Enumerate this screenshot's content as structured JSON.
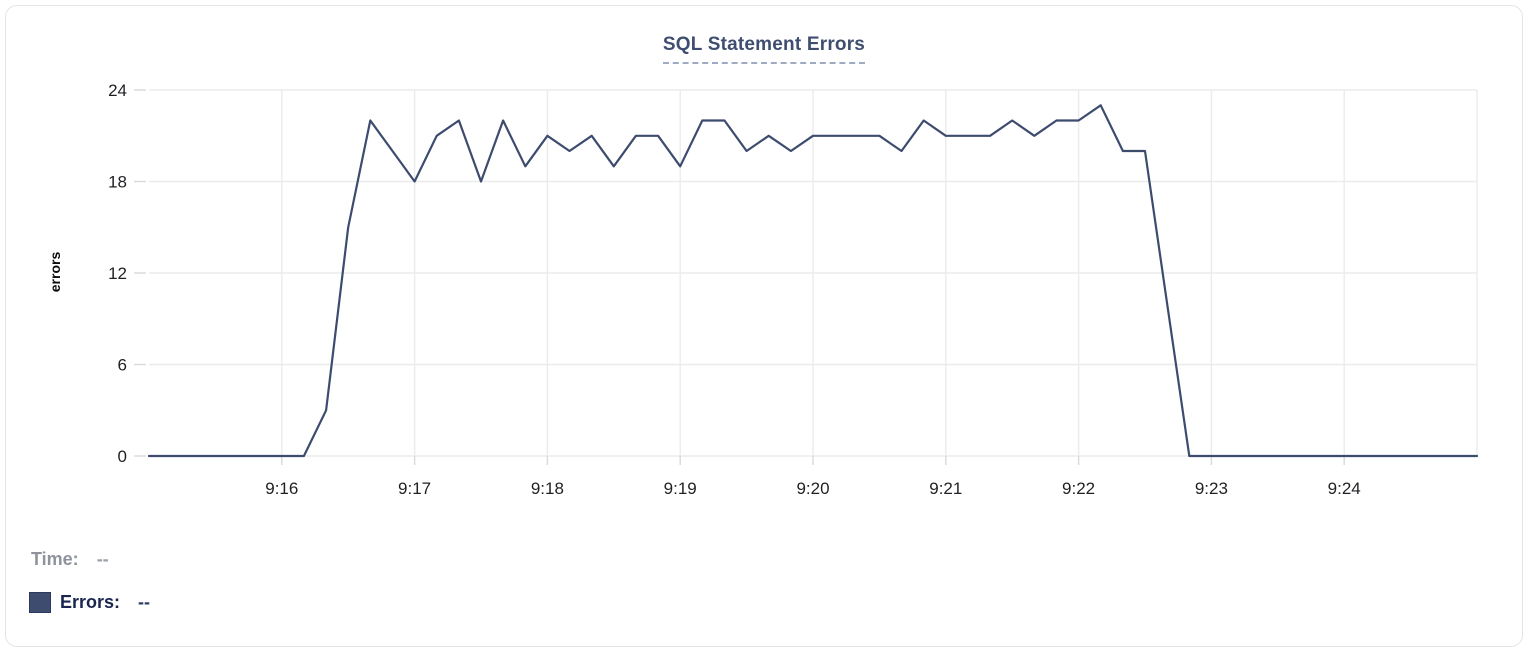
{
  "card": {
    "title": "SQL Statement Errors"
  },
  "axes": {
    "y_label": "errors",
    "y_ticks": [
      0,
      6,
      12,
      18,
      24
    ],
    "x_tick_labels": [
      "9:16",
      "9:17",
      "9:18",
      "9:19",
      "9:20",
      "9:21",
      "9:22",
      "9:23",
      "9:24"
    ]
  },
  "legend": {
    "time_label": "Time:",
    "time_value": "--",
    "errors_label": "Errors:",
    "errors_value": "--"
  },
  "colors": {
    "line": "#3d4b6e",
    "title": "#3f4e70",
    "grid": "#ebebeb",
    "tick": "#d9d9d9",
    "axis_text": "#1f2023",
    "legend_time": "#8e939c",
    "legend_errors": "#1a2550",
    "swatch": "#3e4c70"
  },
  "chart_data": {
    "type": "line",
    "title": "SQL Statement Errors",
    "xlabel": "",
    "ylabel": "errors",
    "ylim": [
      0,
      24
    ],
    "y_ticks": [
      0,
      6,
      12,
      18,
      24
    ],
    "x_ticks": [
      "9:16",
      "9:17",
      "9:18",
      "9:19",
      "9:20",
      "9:21",
      "9:22",
      "9:23",
      "9:24"
    ],
    "x_range": [
      "9:15:00",
      "9:25:00"
    ],
    "grid": true,
    "legend_position": "bottom-left",
    "series": [
      {
        "name": "Errors",
        "color": "#3d4b6e",
        "times": [
          "9:15:00",
          "9:15:10",
          "9:15:20",
          "9:15:30",
          "9:15:40",
          "9:15:50",
          "9:16:00",
          "9:16:10",
          "9:16:20",
          "9:16:30",
          "9:16:40",
          "9:16:50",
          "9:17:00",
          "9:17:10",
          "9:17:20",
          "9:17:30",
          "9:17:40",
          "9:17:50",
          "9:18:00",
          "9:18:10",
          "9:18:20",
          "9:18:30",
          "9:18:40",
          "9:18:50",
          "9:19:00",
          "9:19:10",
          "9:19:20",
          "9:19:30",
          "9:19:40",
          "9:19:50",
          "9:20:00",
          "9:20:10",
          "9:20:20",
          "9:20:30",
          "9:20:40",
          "9:20:50",
          "9:21:00",
          "9:21:10",
          "9:21:20",
          "9:21:30",
          "9:21:40",
          "9:21:50",
          "9:22:00",
          "9:22:10",
          "9:22:20",
          "9:22:30",
          "9:22:40",
          "9:22:50",
          "9:23:00",
          "9:23:10",
          "9:23:20",
          "9:23:30",
          "9:23:40",
          "9:23:50",
          "9:24:00",
          "9:24:10",
          "9:24:20",
          "9:24:30",
          "9:24:40",
          "9:24:50",
          "9:25:00"
        ],
        "values": [
          0,
          0,
          0,
          0,
          0,
          0,
          0,
          0,
          3,
          15,
          22,
          20,
          18,
          21,
          22,
          18,
          22,
          19,
          21,
          20,
          21,
          19,
          21,
          21,
          19,
          22,
          22,
          20,
          21,
          20,
          21,
          21,
          21,
          21,
          20,
          22,
          21,
          21,
          21,
          22,
          21,
          22,
          22,
          23,
          20,
          20,
          10,
          0,
          0,
          0,
          0,
          0,
          0,
          0,
          0,
          0,
          0,
          0,
          0,
          0,
          0
        ]
      }
    ]
  }
}
